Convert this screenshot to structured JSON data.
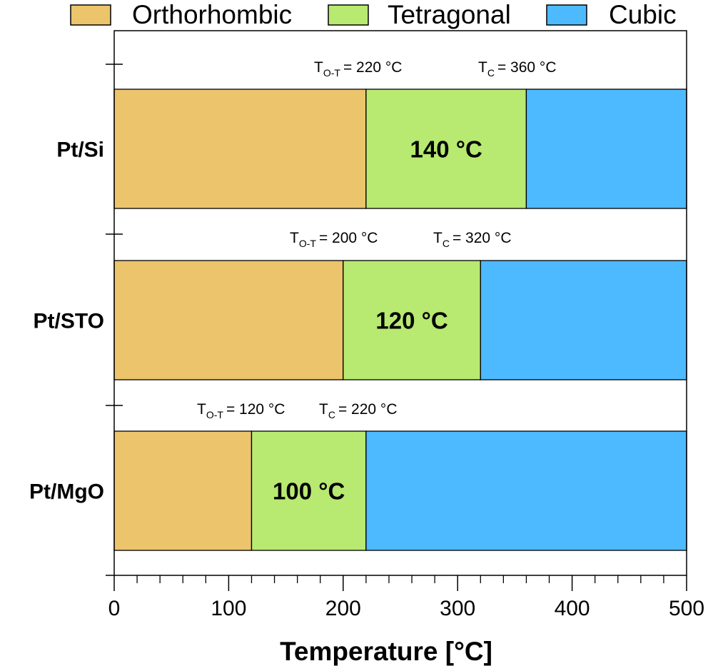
{
  "chart_data": {
    "type": "bar",
    "orientation": "horizontal",
    "stacked": true,
    "legend": {
      "placement": "top",
      "entries": [
        {
          "label": "Orthorhombic",
          "color": "#ecc46c"
        },
        {
          "label": "Tetragonal",
          "color": "#b8e970"
        },
        {
          "label": "Cubic",
          "color": "#4db9ff"
        }
      ]
    },
    "categories": [
      {
        "name": "Pt/Si",
        "t_ot": 220,
        "t_c": 360,
        "ot_text": "= 220 °C",
        "c_text": "= 360 °C",
        "width_label": "140 °C"
      },
      {
        "name": "Pt/STO",
        "t_ot": 200,
        "t_c": 320,
        "ot_text": "= 200 °C",
        "c_text": "= 320 °C",
        "width_label": "120 °C"
      },
      {
        "name": "Pt/MgO",
        "t_ot": 120,
        "t_c": 220,
        "ot_text": "= 120 °C",
        "c_text": "= 220 °C",
        "width_label": "100 °C"
      }
    ],
    "series": [
      {
        "name": "Orthorhombic",
        "values": [
          220,
          200,
          120
        ]
      },
      {
        "name": "Tetragonal",
        "values": [
          140,
          120,
          100
        ]
      },
      {
        "name": "Cubic",
        "values": [
          140,
          180,
          280
        ]
      }
    ],
    "annotation_symbols": {
      "t_prefix": "T",
      "ot_sub": "O-T",
      "c_sub": "C"
    },
    "xlabel": "Temperature [°C]",
    "ylabel": "",
    "xlim": [
      0,
      500
    ],
    "xticks": [
      0,
      100,
      200,
      300,
      400,
      500
    ],
    "minor_tick_step": 20,
    "grid": false
  }
}
